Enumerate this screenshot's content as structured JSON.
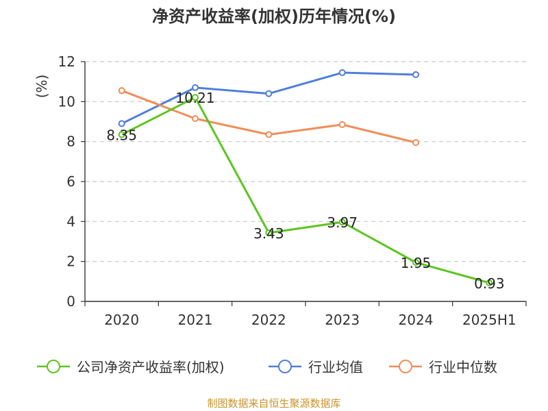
{
  "chart_data": {
    "type": "line",
    "title": "净资产收益率(加权)历年情况(%)",
    "ylabel": "(%)",
    "categories": [
      "2020",
      "2021",
      "2022",
      "2023",
      "2024",
      "2025H1"
    ],
    "ylim": [
      0,
      12
    ],
    "yticks": [
      0,
      2,
      4,
      6,
      8,
      10,
      12
    ],
    "grid": "horizontal dashed",
    "legend_position": "bottom",
    "series": [
      {
        "name": "公司净资产收益率(加权)",
        "color": "#5cc41f",
        "values": [
          8.35,
          10.21,
          3.43,
          3.97,
          1.95,
          0.93
        ],
        "labels": [
          "8.35",
          "10.21",
          "3.43",
          "3.97",
          "1.95",
          "0.93"
        ]
      },
      {
        "name": "行业均值",
        "color": "#4f7fd9",
        "values": [
          8.9,
          10.7,
          10.4,
          11.45,
          11.35,
          null
        ]
      },
      {
        "name": "行业中位数",
        "color": "#f28c57",
        "values": [
          10.55,
          9.15,
          8.35,
          8.85,
          7.95,
          null
        ]
      }
    ]
  },
  "footer": "制图数据来自恒生聚源数据库"
}
